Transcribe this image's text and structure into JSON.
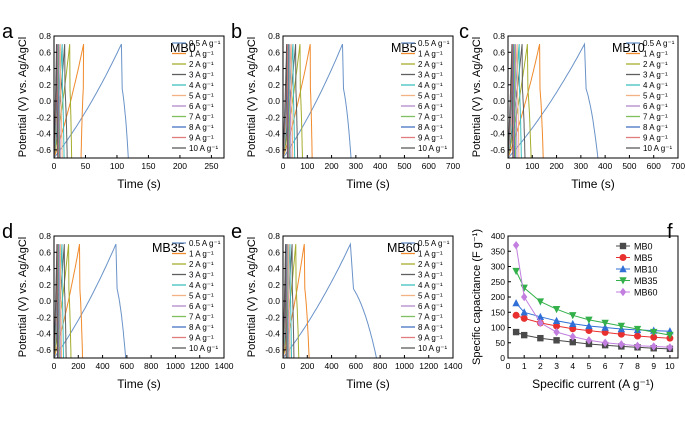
{
  "figure": {
    "y_axis_label": "Potential (V) vs. Ag/AgCl",
    "x_axis_label": "Time (s)",
    "y_ticks": [
      "0.8",
      "0.6",
      "0.4",
      "0.2",
      "0.0",
      "-0.2",
      "-0.4",
      "-0.6"
    ],
    "legend_entries": [
      "0.5 A g⁻¹",
      "1 A g⁻¹",
      "2 A g⁻¹",
      "3 A g⁻¹",
      "4 A g⁻¹",
      "5 A g⁻¹",
      "6 A g⁻¹",
      "7 A g⁻¹",
      "8 A g⁻¹",
      "9 A g⁻¹",
      "10 A g⁻¹"
    ],
    "series_colors": [
      "#6a93c8",
      "#f08a2c",
      "#a5ad2d",
      "#5f5f5f",
      "#3fbfbf",
      "#f4b183",
      "#b389cc",
      "#7fbf5f",
      "#4472c4",
      "#e07c7c",
      "#5a5a5a"
    ]
  },
  "chart_data": [
    {
      "id": "a",
      "panel_label": "a",
      "title": "MB0",
      "type": "line",
      "xlabel": "Time (s)",
      "ylabel": "Potential (V) vs. Ag/AgCl",
      "xlim": [
        0,
        270
      ],
      "ylim": [
        -0.7,
        0.8
      ],
      "x_ticks": [
        "0",
        "50",
        "100",
        "150",
        "200",
        "250"
      ],
      "discharge_times": [
        118,
        43,
        28,
        21,
        16,
        13,
        10,
        9,
        8,
        7,
        6
      ],
      "peak_times": [
        107,
        47,
        25,
        17,
        13,
        10,
        8,
        7,
        6,
        5,
        4
      ]
    },
    {
      "id": "b",
      "panel_label": "b",
      "title": "MB5",
      "type": "line",
      "xlabel": "Time (s)",
      "ylabel": "Potential (V) vs. Ag/AgCl",
      "xlim": [
        0,
        700
      ],
      "ylim": [
        -0.7,
        0.8
      ],
      "x_ticks": [
        "0",
        "100",
        "200",
        "300",
        "400",
        "500",
        "600",
        "700"
      ],
      "discharge_times": [
        280,
        120,
        80,
        60,
        48,
        40,
        33,
        28,
        24,
        21,
        18
      ],
      "peak_times": [
        245,
        112,
        70,
        52,
        41,
        34,
        28,
        24,
        21,
        18,
        15
      ]
    },
    {
      "id": "c",
      "panel_label": "c",
      "title": "MB10",
      "type": "line",
      "xlabel": "Time (s)",
      "ylabel": "Potential (V) vs. Ag/AgCl",
      "xlim": [
        0,
        700
      ],
      "ylim": [
        -0.7,
        0.8
      ],
      "x_ticks": [
        "0",
        "100",
        "200",
        "300",
        "400",
        "500",
        "600",
        "700"
      ],
      "discharge_times": [
        370,
        145,
        95,
        70,
        55,
        45,
        37,
        31,
        27,
        23,
        20
      ],
      "peak_times": [
        315,
        130,
        80,
        58,
        46,
        38,
        31,
        26,
        22,
        19,
        16
      ]
    },
    {
      "id": "d",
      "panel_label": "d",
      "title": "MB35",
      "type": "line",
      "xlabel": "Time (s)",
      "ylabel": "Potential (V) vs. Ag/AgCl",
      "xlim": [
        0,
        1400
      ],
      "ylim": [
        -0.7,
        0.8
      ],
      "x_ticks": [
        "0",
        "200",
        "400",
        "600",
        "800",
        "1000",
        "1200",
        "1400"
      ],
      "discharge_times": [
        590,
        235,
        140,
        100,
        78,
        62,
        52,
        44,
        38,
        33,
        29
      ],
      "peak_times": [
        510,
        210,
        120,
        85,
        66,
        53,
        44,
        37,
        32,
        28,
        24
      ]
    },
    {
      "id": "e",
      "panel_label": "e",
      "title": "MB60",
      "type": "line",
      "xlabel": "Time (s)",
      "ylabel": "Potential (V) vs. Ag/AgCl",
      "xlim": [
        0,
        1400
      ],
      "ylim": [
        -0.7,
        0.8
      ],
      "x_ticks": [
        "0",
        "200",
        "400",
        "600",
        "800",
        "1000",
        "1200",
        "1400"
      ],
      "discharge_times": [
        770,
        215,
        130,
        90,
        70,
        57,
        47,
        40,
        34,
        30,
        26
      ],
      "peak_times": [
        555,
        175,
        105,
        75,
        58,
        47,
        39,
        33,
        28,
        24,
        21
      ]
    },
    {
      "id": "f",
      "panel_label": "f",
      "type": "line",
      "xlabel": "Specific current (A g⁻¹)",
      "ylabel": "Specific capacitance (F g⁻¹)",
      "xlim": [
        0,
        10.5
      ],
      "ylim": [
        0,
        400
      ],
      "x_ticks": [
        "0",
        "1",
        "2",
        "3",
        "4",
        "5",
        "6",
        "7",
        "8",
        "9",
        "10"
      ],
      "y_ticks": [
        "0",
        "50",
        "100",
        "150",
        "200",
        "250",
        "300",
        "350",
        "400"
      ],
      "x": [
        0.5,
        1,
        2,
        3,
        4,
        5,
        6,
        7,
        8,
        9,
        10
      ],
      "legend_placement": "top-right",
      "series": [
        {
          "name": "MB0",
          "color": "#4a4a4a",
          "marker": "square",
          "values": [
            85,
            75,
            65,
            58,
            52,
            46,
            42,
            38,
            35,
            32,
            30
          ]
        },
        {
          "name": "MB5",
          "color": "#e8312f",
          "marker": "circle",
          "values": [
            140,
            130,
            115,
            105,
            96,
            90,
            84,
            78,
            72,
            68,
            65
          ]
        },
        {
          "name": "MB10",
          "color": "#2f6fd6",
          "marker": "triangle-up",
          "values": [
            180,
            150,
            135,
            122,
            112,
            105,
            100,
            95,
            92,
            90,
            88
          ]
        },
        {
          "name": "MB35",
          "color": "#33b04a",
          "marker": "triangle-down",
          "values": [
            285,
            230,
            185,
            160,
            140,
            125,
            115,
            105,
            95,
            85,
            75
          ]
        },
        {
          "name": "MB60",
          "color": "#c27fe0",
          "marker": "diamond",
          "values": [
            370,
            200,
            115,
            85,
            70,
            58,
            50,
            45,
            40,
            38,
            35
          ]
        }
      ]
    }
  ]
}
